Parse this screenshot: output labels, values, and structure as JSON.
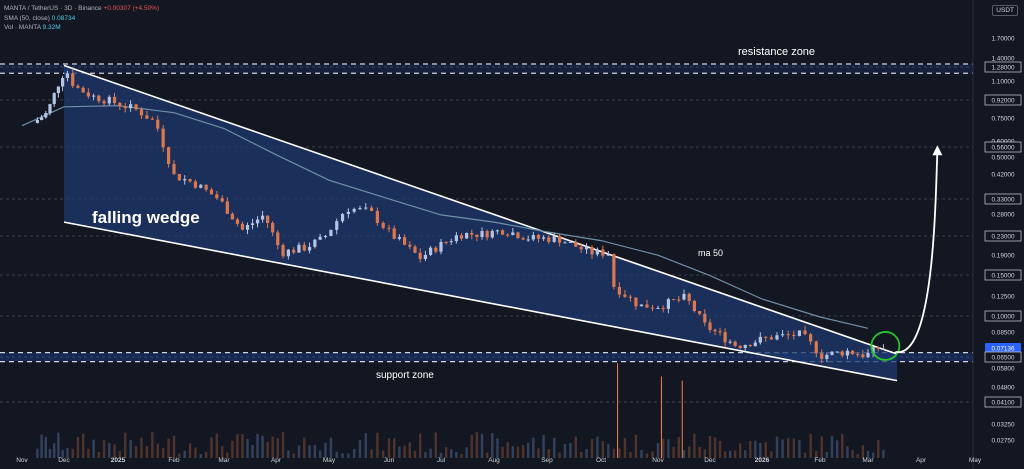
{
  "legend": {
    "symbol": "MANTA / TetherUS · 3D · Binance",
    "change": "+0.00307 (+4.50%)",
    "sma_label": "SMA (50, close)",
    "sma_value": "0.08734",
    "vol_label": "Vol · MANTA",
    "vol_value": "9.32M"
  },
  "currency": "USDT",
  "annotations": {
    "resistance": "resistance zone",
    "support": "support zone",
    "pattern": "falling wedge",
    "ma": "ma 50"
  },
  "colors": {
    "background": "#131722",
    "up_candle": "#b2c5e6",
    "down_candle": "#e0774a",
    "wedge_fill": "#1e3a6e",
    "sma_line": "#6f8fa8",
    "zone_fill": "#2962ff",
    "breakout_circle": "#26c62a",
    "last_price_label": "#2962ff"
  },
  "chart_data": {
    "type": "candlestick",
    "title": "MANTA / TetherUS · 3D · Binance",
    "y_scale": "log",
    "ylim": [
      0.025,
      2.0
    ],
    "y_ticks": [
      "1.70000",
      "1.40000",
      "1.28000",
      "1.10000",
      "0.92000",
      "0.75000",
      "0.60000",
      "0.56000",
      "0.50000",
      "0.42000",
      "0.33000",
      "0.28000",
      "0.23000",
      "0.19000",
      "0.15000",
      "0.12500",
      "0.10000",
      "0.08500",
      "0.07136",
      "0.06500",
      "0.05800",
      "0.04800",
      "0.04100",
      "0.03250",
      "0.02750"
    ],
    "boxed_ticks": [
      "1.28000",
      "0.92000",
      "0.56000",
      "0.33000",
      "0.23000",
      "0.15000",
      "0.10000",
      "0.06500",
      "0.04100"
    ],
    "last_price": 0.07136,
    "x_labels": [
      "Nov",
      "Dec",
      "2025",
      "Feb",
      "Mar",
      "Apr",
      "May",
      "Jun",
      "Jul",
      "Aug",
      "Sep",
      "Oct",
      "Nov",
      "Dec",
      "2026",
      "Feb",
      "Mar",
      "Apr",
      "May"
    ],
    "x_label_dates": [
      "2024-11-01",
      "2024-12-01",
      "2025-01-01",
      "2025-02-01",
      "2025-03-01",
      "2025-04-01",
      "2025-05-01",
      "2025-06-01",
      "2025-07-01",
      "2025-08-01",
      "2025-09-01",
      "2025-10-01",
      "2025-11-01",
      "2025-12-01",
      "2026-01-01",
      "2026-02-01",
      "2026-03-01",
      "2026-04-01",
      "2026-05-01"
    ],
    "price_path": [
      [
        "2024-11-12",
        0.72
      ],
      [
        "2024-11-22",
        0.8
      ],
      [
        "2024-12-01",
        1.12
      ],
      [
        "2024-12-05",
        1.25
      ],
      [
        "2024-12-10",
        1.05
      ],
      [
        "2024-12-20",
        0.95
      ],
      [
        "2024-12-31",
        0.9
      ],
      [
        "2025-01-15",
        0.82
      ],
      [
        "2025-01-25",
        0.72
      ],
      [
        "2025-02-04",
        0.42
      ],
      [
        "2025-02-15",
        0.39
      ],
      [
        "2025-03-01",
        0.33
      ],
      [
        "2025-03-15",
        0.24
      ],
      [
        "2025-03-28",
        0.28
      ],
      [
        "2025-04-07",
        0.19
      ],
      [
        "2025-04-20",
        0.2
      ],
      [
        "2025-05-01",
        0.22
      ],
      [
        "2025-05-13",
        0.3
      ],
      [
        "2025-05-25",
        0.29
      ],
      [
        "2025-06-05",
        0.23
      ],
      [
        "2025-06-22",
        0.18
      ],
      [
        "2025-07-01",
        0.2
      ],
      [
        "2025-07-15",
        0.23
      ],
      [
        "2025-07-28",
        0.23
      ],
      [
        "2025-08-10",
        0.24
      ],
      [
        "2025-08-25",
        0.22
      ],
      [
        "2025-09-10",
        0.22
      ],
      [
        "2025-09-28",
        0.19
      ],
      [
        "2025-10-09",
        0.19
      ],
      [
        "2025-10-11",
        0.135
      ],
      [
        "2025-10-25",
        0.11
      ],
      [
        "2025-11-05",
        0.11
      ],
      [
        "2025-11-20",
        0.12
      ],
      [
        "2025-12-01",
        0.09
      ],
      [
        "2025-12-20",
        0.073
      ],
      [
        "2026-01-10",
        0.08
      ],
      [
        "2026-01-25",
        0.082
      ],
      [
        "2026-02-05",
        0.066
      ],
      [
        "2026-02-20",
        0.069
      ],
      [
        "2026-03-03",
        0.066
      ],
      [
        "2026-03-10",
        0.07136
      ]
    ],
    "series": [
      {
        "name": "SMA (50, close)",
        "points": [
          [
            "2024-11-01",
            0.7
          ],
          [
            "2024-12-01",
            0.85
          ],
          [
            "2025-01-01",
            0.86
          ],
          [
            "2025-02-01",
            0.8
          ],
          [
            "2025-03-01",
            0.68
          ],
          [
            "2025-04-01",
            0.52
          ],
          [
            "2025-05-01",
            0.4
          ],
          [
            "2025-06-01",
            0.33
          ],
          [
            "2025-07-01",
            0.28
          ],
          [
            "2025-08-01",
            0.26
          ],
          [
            "2025-09-01",
            0.235
          ],
          [
            "2025-10-01",
            0.215
          ],
          [
            "2025-11-01",
            0.185
          ],
          [
            "2025-12-01",
            0.15
          ],
          [
            "2026-01-01",
            0.118
          ],
          [
            "2026-02-01",
            0.098
          ],
          [
            "2026-03-01",
            0.08734
          ]
        ]
      }
    ],
    "volume_spikes": [
      [
        "2025-10-10",
        0.055
      ],
      [
        "2025-11-03",
        0.048
      ],
      [
        "2025-11-15",
        0.046
      ]
    ],
    "wedge": {
      "upper": [
        [
          "2024-12-01",
          1.3
        ],
        [
          "2026-03-18",
          0.067
        ]
      ],
      "lower": [
        [
          "2024-12-01",
          0.26
        ],
        [
          "2026-03-18",
          0.051
        ]
      ]
    },
    "resistance_zone": [
      1.2,
      1.32
    ],
    "support_zone": [
      0.062,
      0.068
    ],
    "projection_target": 0.55
  }
}
